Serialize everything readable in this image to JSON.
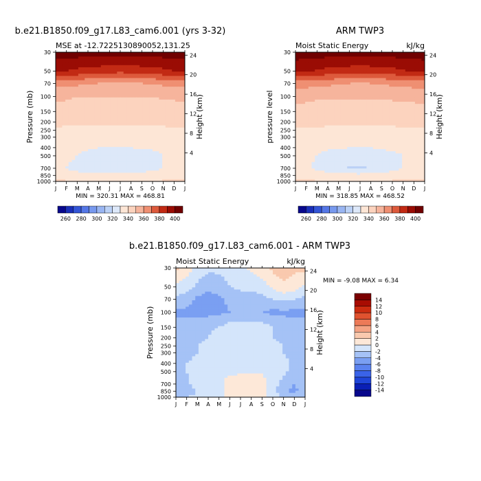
{
  "months": [
    "J",
    "F",
    "M",
    "A",
    "M",
    "J",
    "J",
    "A",
    "S",
    "O",
    "N",
    "D",
    "J"
  ],
  "pressure_ticks": [
    30,
    50,
    70,
    100,
    150,
    200,
    250,
    300,
    400,
    500,
    700,
    850,
    1000
  ],
  "height_ticks": [
    24,
    20,
    16,
    12,
    8,
    4
  ],
  "abs_levels": [
    260,
    270,
    280,
    290,
    300,
    310,
    320,
    330,
    340,
    350,
    360,
    370,
    380,
    390,
    400
  ],
  "abs_label_levels": [
    260,
    280,
    300,
    320,
    340,
    360,
    380,
    400
  ],
  "abs_colors": [
    "#08088c",
    "#1a2fb8",
    "#3355d6",
    "#5577e6",
    "#7799ee",
    "#99b5f2",
    "#bbd1f6",
    "#dde8f9",
    "#fde6d6",
    "#fcd3be",
    "#f6b49c",
    "#ef8f72",
    "#dd5a3c",
    "#c22a14",
    "#9a0c04",
    "#700000"
  ],
  "diff_levels": [
    -14,
    -12,
    -10,
    -8,
    -6,
    -4,
    -2,
    0,
    2,
    4,
    6,
    8,
    10,
    12,
    14
  ],
  "diff_colors": [
    "#08088c",
    "#0a1fb5",
    "#1f45d8",
    "#3a63e8",
    "#5a82ef",
    "#7a9ff2",
    "#a5c2f6",
    "#d4e5fb",
    "#fde8d8",
    "#f9c9ae",
    "#f4a384",
    "#ec7a58",
    "#e0522f",
    "#cc2c10",
    "#a80c02",
    "#7a0000"
  ],
  "chart_data": [
    {
      "type": "heatmap",
      "title": "b.e21.B1850.f09_g17.L83_cam6.001 (yrs 3-32)",
      "subtitle_left": "MSE at -12.7225130890052,131.25",
      "subtitle_right": "",
      "ylabel": "Pressure (mb)",
      "ylabel_right": "Height (km)",
      "stats": "MIN = 320.31  MAX = 468.81",
      "x": [
        "J",
        "F",
        "M",
        "A",
        "M",
        "J",
        "J",
        "A",
        "S",
        "O",
        "N",
        "D",
        "J"
      ],
      "y_pressure": [
        30,
        50,
        70,
        100,
        150,
        200,
        250,
        300,
        400,
        500,
        700,
        850,
        1000
      ],
      "ylim": [
        1000,
        30
      ],
      "values": [
        [
          405,
          405,
          405,
          405,
          405,
          405,
          405,
          405,
          405,
          405,
          405,
          405,
          405
        ],
        [
          392,
          390,
          388,
          386,
          385,
          384,
          383,
          384,
          385,
          386,
          388,
          390,
          392
        ],
        [
          364,
          363,
          362,
          361,
          360,
          359,
          358,
          359,
          360,
          361,
          362,
          363,
          364
        ],
        [
          352,
          351,
          350,
          350,
          350,
          350,
          350,
          350,
          350,
          350,
          351,
          351,
          352
        ],
        [
          347,
          347,
          347,
          346,
          346,
          346,
          346,
          346,
          346,
          346,
          347,
          347,
          347
        ],
        [
          342,
          342,
          342,
          342,
          341,
          341,
          341,
          341,
          341,
          342,
          342,
          342,
          342
        ],
        [
          339,
          338,
          338,
          338,
          338,
          338,
          338,
          338,
          338,
          338,
          338,
          339,
          339
        ],
        [
          336,
          336,
          335,
          335,
          335,
          335,
          335,
          335,
          335,
          335,
          335,
          336,
          336
        ],
        [
          333,
          332,
          332,
          331,
          330,
          330,
          330,
          330,
          331,
          331,
          332,
          332,
          333
        ],
        [
          332,
          332,
          330,
          327,
          326,
          325,
          325,
          325,
          326,
          328,
          330,
          331,
          332
        ],
        [
          331,
          330,
          327,
          325,
          324,
          324,
          324,
          324,
          325,
          327,
          330,
          331,
          331
        ],
        [
          336,
          335,
          334,
          333,
          333,
          333,
          333,
          333,
          334,
          335,
          336,
          336,
          336
        ],
        [
          342,
          341,
          340,
          338,
          337,
          337,
          337,
          337,
          338,
          340,
          341,
          342,
          342
        ]
      ]
    },
    {
      "type": "heatmap",
      "title": "ARM TWP3",
      "subtitle_left": "Moist Static Energy",
      "subtitle_right": "kJ/kg",
      "ylabel": "pressure level",
      "ylabel_right": "Height (km)",
      "stats": "MIN = 318.85  MAX = 468.52",
      "x": [
        "J",
        "F",
        "M",
        "A",
        "M",
        "J",
        "J",
        "A",
        "S",
        "O",
        "N",
        "D",
        "J"
      ],
      "y_pressure": [
        30,
        50,
        70,
        100,
        150,
        200,
        250,
        300,
        400,
        500,
        700,
        850,
        1000
      ],
      "ylim": [
        1000,
        30
      ],
      "values": [
        [
          405,
          405,
          405,
          405,
          405,
          405,
          405,
          405,
          405,
          405,
          405,
          405,
          405
        ],
        [
          393,
          391,
          389,
          387,
          386,
          385,
          384,
          385,
          386,
          387,
          389,
          391,
          393
        ],
        [
          365,
          364,
          363,
          362,
          361,
          360,
          359,
          360,
          361,
          362,
          363,
          364,
          365
        ],
        [
          353,
          352,
          351,
          351,
          351,
          351,
          351,
          351,
          351,
          351,
          352,
          352,
          353
        ],
        [
          347,
          347,
          347,
          347,
          347,
          347,
          347,
          347,
          347,
          347,
          347,
          347,
          347
        ],
        [
          342,
          342,
          342,
          342,
          342,
          341,
          341,
          341,
          342,
          342,
          342,
          342,
          342
        ],
        [
          339,
          339,
          339,
          338,
          338,
          338,
          338,
          338,
          338,
          338,
          339,
          339,
          339
        ],
        [
          336,
          336,
          336,
          336,
          335,
          335,
          335,
          335,
          335,
          336,
          336,
          336,
          336
        ],
        [
          333,
          333,
          332,
          331,
          331,
          330,
          330,
          330,
          331,
          332,
          332,
          333,
          333
        ],
        [
          333,
          332,
          330,
          327,
          325,
          324,
          323,
          324,
          326,
          328,
          330,
          332,
          333
        ],
        [
          332,
          331,
          328,
          325,
          322,
          319.5,
          319,
          320,
          323,
          327,
          330,
          331,
          332
        ],
        [
          337,
          336,
          335,
          334,
          334,
          333,
          333,
          333,
          334,
          335,
          336,
          337,
          337
        ],
        [
          343,
          342,
          341,
          339,
          338,
          338,
          338,
          338,
          339,
          341,
          342,
          343,
          343
        ]
      ]
    },
    {
      "type": "heatmap",
      "title": "b.e21.B1850.f09_g17.L83_cam6.001 - ARM TWP3",
      "subtitle_left": "Moist Static Energy",
      "subtitle_right": "kJ/kg",
      "ylabel": "Pressure (mb)",
      "ylabel_right": "Height (km)",
      "stats": "MIN =  -9.08 MAX =   6.34",
      "x": [
        "J",
        "F",
        "M",
        "A",
        "M",
        "J",
        "J",
        "A",
        "S",
        "O",
        "N",
        "D",
        "J"
      ],
      "y_pressure": [
        30,
        50,
        70,
        100,
        150,
        200,
        250,
        300,
        400,
        500,
        700,
        850,
        1000
      ],
      "ylim": [
        1000,
        30
      ],
      "values": [
        [
          2.5,
          1.0,
          -0.5,
          -1.5,
          -1.5,
          -1.0,
          -0.5,
          0.5,
          1.5,
          2.5,
          3.0,
          2.5,
          2.5
        ],
        [
          -0.5,
          -1.0,
          -2.5,
          -3.5,
          -3.0,
          -2.0,
          -1.5,
          -1.5,
          -1.0,
          0.5,
          1.5,
          1.0,
          -0.5
        ],
        [
          -2.5,
          -3.0,
          -4.5,
          -5.0,
          -4.5,
          -3.5,
          -3.0,
          -3.0,
          -2.5,
          -2.0,
          -1.5,
          -2.0,
          -2.5
        ],
        [
          -4.5,
          -4.5,
          -5.0,
          -4.5,
          -4.5,
          -4.0,
          -4.0,
          -4.0,
          -4.0,
          -4.5,
          -4.5,
          -4.5,
          -4.5
        ],
        [
          -3.0,
          -3.0,
          -2.5,
          -2.5,
          -2.0,
          -1.0,
          -1.0,
          -1.0,
          -1.0,
          -2.0,
          -2.5,
          -3.0,
          -3.0
        ],
        [
          -2.5,
          -2.5,
          -2.5,
          -2.0,
          -1.0,
          -0.5,
          -0.5,
          -0.5,
          -1.0,
          -2.0,
          -2.5,
          -2.5,
          -2.5
        ],
        [
          -2.5,
          -2.5,
          -2.0,
          -1.5,
          -0.5,
          -0.3,
          -0.3,
          -0.3,
          -0.5,
          -1.5,
          -2.0,
          -2.5,
          -2.5
        ],
        [
          -2.5,
          -2.5,
          -2.0,
          -1.5,
          -0.5,
          -0.3,
          -0.3,
          -0.3,
          -0.5,
          -1.5,
          -2.0,
          -2.5,
          -2.5
        ],
        [
          -2.5,
          -2.0,
          -1.5,
          -1.0,
          -0.5,
          -0.3,
          -0.3,
          -0.3,
          -0.5,
          -1.0,
          -1.5,
          -2.5,
          -2.5
        ],
        [
          -2.5,
          -2.0,
          -1.0,
          -0.5,
          -0.3,
          -0.3,
          -0.2,
          -0.2,
          -0.3,
          -0.5,
          -1.5,
          -3.0,
          -2.5
        ],
        [
          -2.5,
          -2.5,
          -1.0,
          -0.5,
          -0.3,
          0.5,
          1.0,
          1.5,
          1.0,
          -1.0,
          -3.0,
          -4.0,
          -2.5
        ],
        [
          -3.0,
          -3.0,
          -2.0,
          -1.0,
          -0.5,
          0.5,
          1.0,
          1.5,
          1.0,
          -1.0,
          -3.5,
          -4.5,
          -3.0
        ],
        [
          -2.0,
          -2.0,
          -1.5,
          -0.5,
          -0.5,
          0.5,
          1.0,
          1.0,
          0.5,
          -1.0,
          -2.5,
          -3.0,
          -2.0
        ]
      ]
    }
  ]
}
